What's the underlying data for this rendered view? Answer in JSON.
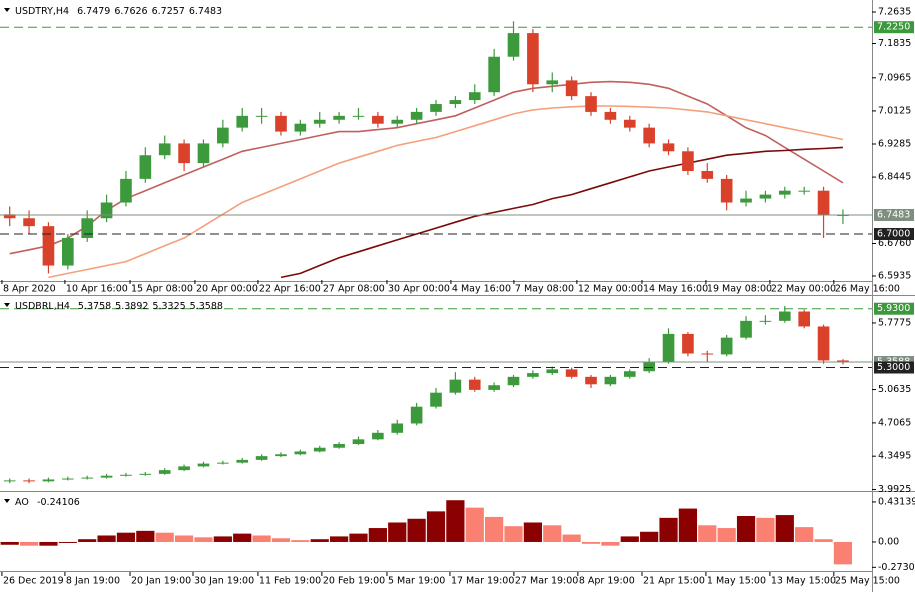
{
  "chart_data": [
    {
      "type": "candlestick",
      "title": "USDTRY,H4",
      "header_values": [
        6.7479,
        6.7626,
        6.7257,
        6.7483
      ],
      "xlim": [
        0,
        45
      ],
      "xticks": [
        {
          "value": 0.1,
          "label": "8 Apr 2020"
        },
        {
          "value": 3.35,
          "label": "10 Apr 16:00"
        },
        {
          "value": 6.71,
          "label": "15 Apr 08:00"
        },
        {
          "value": 10.06,
          "label": "20 Apr 00:00"
        },
        {
          "value": 13.31,
          "label": "22 Apr 16:00"
        },
        {
          "value": 16.61,
          "label": "27 Apr 08:00"
        },
        {
          "value": 19.97,
          "label": "30 Apr 00:00"
        },
        {
          "value": 23.27,
          "label": "4 May 16:00"
        },
        {
          "value": 26.52,
          "label": "7 May 08:00"
        },
        {
          "value": 29.77,
          "label": "12 May 00:00"
        },
        {
          "value": 33.13,
          "label": "14 May 16:00"
        },
        {
          "value": 36.43,
          "label": "19 May 08:00"
        },
        {
          "value": 39.73,
          "label": "22 May 00:00"
        },
        {
          "value": 43.03,
          "label": "26 May 16:00"
        }
      ],
      "ylim": [
        6.5833,
        7.2864
      ],
      "yticks": [
        7.2635,
        7.1835,
        7.0965,
        7.0125,
        6.9285,
        6.8445,
        {
          "value": 6.676,
          "label": "6.6760"
        },
        6.5935
      ],
      "up_color": "#3c9a3c",
      "down_color": "#d9412b",
      "open": [
        6.75,
        6.74,
        6.72,
        6.62,
        6.69,
        6.74,
        6.78,
        6.84,
        6.9,
        6.93,
        6.88,
        6.93,
        6.97,
        7.0,
        7.0,
        6.96,
        6.98,
        6.99,
        7.0,
        7.0,
        6.98,
        6.99,
        7.01,
        7.03,
        7.04,
        7.06,
        7.15,
        7.21,
        7.08,
        7.09,
        7.05,
        7.01,
        6.99,
        6.97,
        6.93,
        6.91,
        6.86,
        6.84,
        6.78,
        6.79,
        6.8,
        6.81,
        6.81,
        6.7479
      ],
      "high": [
        6.77,
        6.76,
        6.73,
        6.7,
        6.76,
        6.8,
        6.86,
        6.92,
        6.95,
        6.94,
        6.94,
        6.99,
        7.02,
        7.02,
        7.01,
        6.99,
        7.01,
        7.01,
        7.02,
        7.01,
        7.0,
        7.02,
        7.04,
        7.05,
        7.08,
        7.17,
        7.24,
        7.22,
        7.11,
        7.1,
        7.06,
        7.02,
        7.0,
        6.98,
        6.94,
        6.92,
        6.88,
        6.85,
        6.81,
        6.81,
        6.82,
        6.82,
        6.82,
        6.7626
      ],
      "low": [
        6.72,
        6.7,
        6.6,
        6.61,
        6.68,
        6.73,
        6.77,
        6.83,
        6.89,
        6.86,
        6.87,
        6.92,
        6.96,
        6.98,
        6.95,
        6.95,
        6.97,
        6.98,
        6.99,
        6.97,
        6.97,
        6.98,
        7.0,
        7.02,
        7.03,
        7.05,
        7.14,
        7.06,
        7.06,
        7.04,
        7.0,
        6.98,
        6.96,
        6.92,
        6.9,
        6.85,
        6.83,
        6.76,
        6.77,
        6.78,
        6.79,
        6.8,
        6.69,
        6.7257
      ],
      "close": [
        6.74,
        6.72,
        6.62,
        6.69,
        6.74,
        6.78,
        6.84,
        6.9,
        6.93,
        6.88,
        6.93,
        6.97,
        7.0,
        7.0,
        6.96,
        6.98,
        6.99,
        7.0,
        7.0,
        6.98,
        6.99,
        7.01,
        7.03,
        7.04,
        7.06,
        7.15,
        7.21,
        7.08,
        7.09,
        7.05,
        7.01,
        6.99,
        6.97,
        6.93,
        6.91,
        6.86,
        6.84,
        6.78,
        6.79,
        6.8,
        6.81,
        6.81,
        6.7479,
        6.7483
      ],
      "lines": [
        {
          "color": "#c0605f",
          "values": [
            6.65,
            6.66,
            6.67,
            6.69,
            6.72,
            6.76,
            6.79,
            6.81,
            6.83,
            6.85,
            6.87,
            6.89,
            6.91,
            6.92,
            6.93,
            6.94,
            6.95,
            6.96,
            6.96,
            6.965,
            6.97,
            6.98,
            6.99,
            7.0,
            7.02,
            7.04,
            7.06,
            7.07,
            7.075,
            7.08,
            7.085,
            7.087,
            7.085,
            7.08,
            7.07,
            7.05,
            7.03,
            7.0,
            6.97,
            6.95,
            6.92,
            6.89,
            6.86,
            6.83
          ]
        },
        {
          "color": "#f4a07a",
          "values": [
            null,
            null,
            6.59,
            6.6,
            6.61,
            6.62,
            6.63,
            6.65,
            6.67,
            6.69,
            6.72,
            6.75,
            6.78,
            6.8,
            6.82,
            6.84,
            6.86,
            6.88,
            6.895,
            6.91,
            6.925,
            6.935,
            6.945,
            6.96,
            6.975,
            6.99,
            7.005,
            7.015,
            7.02,
            7.023,
            7.025,
            7.025,
            7.024,
            7.022,
            7.02,
            7.015,
            7.01,
            7.0,
            6.99,
            6.98,
            6.97,
            6.96,
            6.95,
            6.94
          ]
        },
        {
          "color": "#7a0a0a",
          "values": [
            null,
            null,
            null,
            null,
            null,
            null,
            null,
            null,
            null,
            null,
            null,
            null,
            null,
            null,
            6.59,
            6.6,
            6.62,
            6.64,
            6.655,
            6.67,
            6.685,
            6.7,
            6.715,
            6.73,
            6.745,
            6.755,
            6.765,
            6.775,
            6.79,
            6.8,
            6.815,
            6.83,
            6.845,
            6.86,
            6.87,
            6.88,
            6.89,
            6.9,
            6.905,
            6.91,
            6.912,
            6.915,
            6.917,
            6.92
          ]
        }
      ],
      "levels": [
        {
          "value": 7.225,
          "label": "7.2250",
          "color": "#3c9a3c",
          "dash": true
        },
        {
          "value": 6.7483,
          "label": "6.7483",
          "color": "#7f8f7f",
          "dash": false
        },
        {
          "value": 6.7,
          "label": "6.7000",
          "color": "#222222",
          "dash": true
        }
      ]
    },
    {
      "type": "candlestick",
      "title": "USDBRL,H4",
      "header_values": [
        5.3758,
        5.3892,
        5.3325,
        5.3588
      ],
      "xlim": [
        0,
        45
      ],
      "ylim": [
        3.987,
        6.045
      ],
      "yticks": [
        5.7775,
        5.0635,
        4.7065,
        4.3495,
        3.9925
      ],
      "up_color": "#3c9a3c",
      "down_color": "#d9412b",
      "open": [
        4.08,
        4.09,
        4.08,
        4.1,
        4.11,
        4.12,
        4.14,
        4.15,
        4.16,
        4.2,
        4.24,
        4.27,
        4.28,
        4.31,
        4.35,
        4.37,
        4.4,
        4.44,
        4.48,
        4.53,
        4.6,
        4.7,
        4.88,
        5.03,
        5.17,
        5.06,
        5.11,
        5.2,
        5.24,
        5.28,
        5.2,
        5.12,
        5.2,
        5.26,
        5.36,
        5.66,
        5.45,
        5.44,
        5.62,
        5.8,
        5.8,
        5.9,
        5.74,
        5.3758
      ],
      "high": [
        4.11,
        4.11,
        4.12,
        4.13,
        4.14,
        4.16,
        4.17,
        4.18,
        4.22,
        4.26,
        4.29,
        4.3,
        4.33,
        4.37,
        4.39,
        4.42,
        4.46,
        4.5,
        4.56,
        4.63,
        4.74,
        4.92,
        5.08,
        5.25,
        5.2,
        5.14,
        5.22,
        5.27,
        5.31,
        5.3,
        5.22,
        5.22,
        5.28,
        5.4,
        5.72,
        5.68,
        5.48,
        5.65,
        5.85,
        5.86,
        5.96,
        5.92,
        5.76,
        5.3892
      ],
      "low": [
        4.06,
        4.06,
        4.07,
        4.09,
        4.1,
        4.11,
        4.13,
        4.14,
        4.15,
        4.19,
        4.23,
        4.26,
        4.27,
        4.3,
        4.34,
        4.36,
        4.39,
        4.43,
        4.47,
        4.52,
        4.58,
        4.68,
        4.86,
        5.01,
        5.04,
        5.04,
        5.09,
        5.18,
        5.22,
        5.18,
        5.08,
        5.1,
        5.18,
        5.24,
        5.34,
        5.42,
        5.36,
        5.42,
        5.6,
        5.76,
        5.78,
        5.72,
        5.34,
        5.3325
      ],
      "close": [
        4.09,
        4.08,
        4.1,
        4.11,
        4.12,
        4.14,
        4.15,
        4.16,
        4.2,
        4.24,
        4.27,
        4.28,
        4.31,
        4.35,
        4.37,
        4.4,
        4.44,
        4.48,
        4.53,
        4.6,
        4.7,
        4.88,
        5.03,
        5.17,
        5.06,
        5.11,
        5.2,
        5.24,
        5.28,
        5.2,
        5.12,
        5.2,
        5.26,
        5.36,
        5.66,
        5.45,
        5.44,
        5.62,
        5.8,
        5.8,
        5.9,
        5.74,
        5.3758,
        5.3588
      ],
      "levels": [
        {
          "value": 5.93,
          "label": "5.9300",
          "color": "#3c9a3c",
          "dash": true
        },
        {
          "value": 5.3588,
          "label": "5.3588",
          "color": "#7f8f7f",
          "dash": false
        },
        {
          "value": 5.3,
          "label": "5.3000",
          "color": "#222222",
          "dash": true
        }
      ]
    },
    {
      "type": "histogram",
      "title": "AO",
      "header_values": [
        -0.24106
      ],
      "xlim": [
        0,
        45
      ],
      "xticks": [
        {
          "value": 0.1,
          "label": "26 Dec 2019"
        },
        {
          "value": 3.35,
          "label": "8 Jan 19:00"
        },
        {
          "value": 6.71,
          "label": "20 Jan 19:00"
        },
        {
          "value": 9.96,
          "label": "30 Jan 19:00"
        },
        {
          "value": 13.31,
          "label": "11 Feb 19:00"
        },
        {
          "value": 16.61,
          "label": "20 Feb 19:00"
        },
        {
          "value": 19.97,
          "label": "5 Mar 19:00"
        },
        {
          "value": 23.22,
          "label": "17 Mar 19:00"
        },
        {
          "value": 26.52,
          "label": "27 Mar 19:00"
        },
        {
          "value": 29.82,
          "label": "8 Apr 19:00"
        },
        {
          "value": 33.13,
          "label": "21 Apr 15:00"
        },
        {
          "value": 36.43,
          "label": "1 May 15:00"
        },
        {
          "value": 39.73,
          "label": "13 May 15:00"
        },
        {
          "value": 43.03,
          "label": "25 May 15:00"
        }
      ],
      "ylim": [
        -0.302,
        0.517
      ],
      "yticks": [
        0.43139,
        {
          "value": 0,
          "label": "0.00"
        },
        -0.27308
      ],
      "up_color": "#8b0000",
      "down_color": "#fa8072",
      "values": [
        -0.03,
        -0.04,
        -0.04,
        -0.01,
        0.03,
        0.07,
        0.1,
        0.12,
        0.1,
        0.07,
        0.05,
        0.06,
        0.09,
        0.07,
        0.04,
        0.02,
        0.03,
        0.06,
        0.09,
        0.15,
        0.21,
        0.25,
        0.33,
        0.45,
        0.37,
        0.27,
        0.17,
        0.21,
        0.18,
        0.08,
        -0.02,
        -0.04,
        0.06,
        0.11,
        0.26,
        0.36,
        0.18,
        0.15,
        0.28,
        0.26,
        0.29,
        0.16,
        0.03,
        -0.24106
      ]
    }
  ]
}
